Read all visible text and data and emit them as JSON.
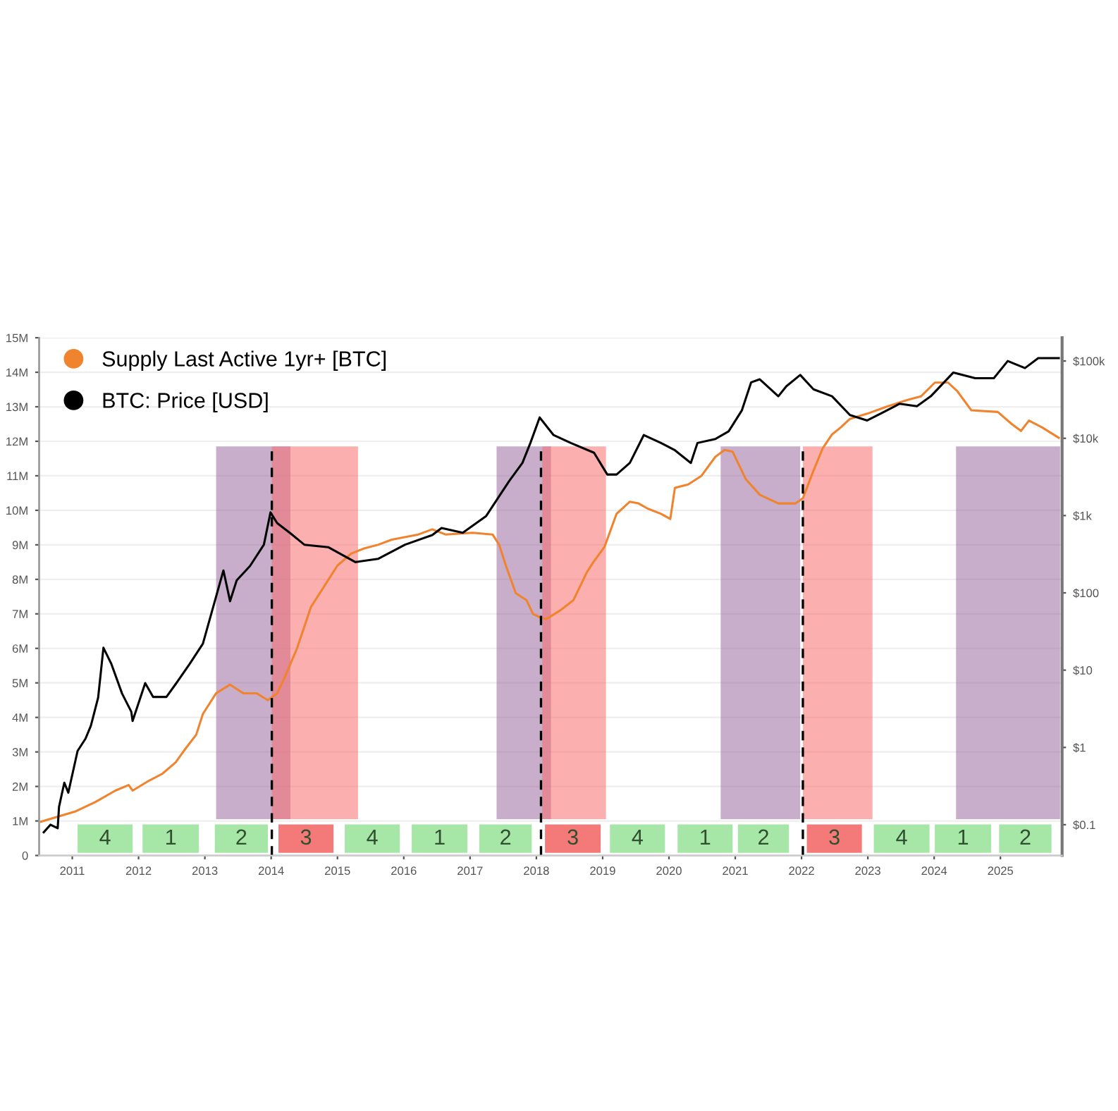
{
  "chart_data": {
    "type": "line",
    "series": [
      {
        "name": "Supply Last Active 1yr+ [BTC]",
        "color": "#f0832e",
        "x": [
          2010.53,
          2011.04,
          2011.35,
          2011.65,
          2011.85,
          2011.91,
          2012.16,
          2012.36,
          2012.56,
          2012.71,
          2012.87,
          2012.97,
          2013.17,
          2013.38,
          2013.58,
          2013.78,
          2013.95,
          2014.09,
          2014.19,
          2014.39,
          2014.6,
          2014.8,
          2015.0,
          2015.21,
          2015.41,
          2015.61,
          2015.82,
          2016.22,
          2016.43,
          2016.63,
          2017.04,
          2017.34,
          2017.44,
          2017.54,
          2017.69,
          2017.85,
          2017.95,
          2018.05,
          2018.15,
          2018.36,
          2018.56,
          2018.76,
          2018.86,
          2019.03,
          2019.21,
          2019.41,
          2019.54,
          2019.68,
          2019.88,
          2020.02,
          2020.09,
          2020.29,
          2020.49,
          2020.7,
          2020.84,
          2020.96,
          2021.16,
          2021.37,
          2021.65,
          2021.91,
          2022.02,
          2022.18,
          2022.32,
          2022.46,
          2022.59,
          2022.73,
          2022.99,
          2023.28,
          2023.6,
          2023.8,
          2024.01,
          2024.21,
          2024.35,
          2024.56,
          2024.96,
          2025.17,
          2025.31,
          2025.43,
          2025.63,
          2025.88
        ],
        "values": [
          980000,
          1270000,
          1550000,
          1880000,
          2040000,
          1880000,
          2170000,
          2370000,
          2700000,
          3100000,
          3500000,
          4100000,
          4700000,
          4950000,
          4700000,
          4700000,
          4500000,
          4700000,
          5100000,
          6000000,
          7200000,
          7800000,
          8400000,
          8750000,
          8900000,
          9000000,
          9150000,
          9300000,
          9450000,
          9300000,
          9350000,
          9300000,
          9000000,
          8400000,
          7600000,
          7400000,
          7000000,
          6900000,
          6850000,
          7100000,
          7400000,
          8200000,
          8500000,
          8950000,
          9900000,
          10250000,
          10200000,
          10050000,
          9900000,
          9750000,
          10650000,
          10750000,
          11000000,
          11550000,
          11750000,
          11700000,
          10900000,
          10450000,
          10200000,
          10200000,
          10350000,
          11150000,
          11800000,
          12200000,
          12400000,
          12650000,
          12800000,
          13000000,
          13200000,
          13300000,
          13700000,
          13700000,
          13450000,
          12900000,
          12850000,
          12500000,
          12300000,
          12600000,
          12400000,
          12100000
        ]
      },
      {
        "name": "BTC: Price [USD]",
        "color": "#000000",
        "axis": "y2",
        "x": [
          2010.57,
          2010.67,
          2010.78,
          2010.8,
          2010.88,
          2010.94,
          2011.08,
          2011.2,
          2011.28,
          2011.39,
          2011.47,
          2011.59,
          2011.75,
          2011.89,
          2011.91,
          2012.1,
          2012.22,
          2012.42,
          2012.57,
          2012.77,
          2012.97,
          2013.28,
          2013.38,
          2013.48,
          2013.68,
          2013.89,
          2013.99,
          2014.09,
          2014.29,
          2014.5,
          2014.86,
          2015.27,
          2015.61,
          2016.02,
          2016.43,
          2016.57,
          2016.89,
          2017.24,
          2017.59,
          2017.79,
          2017.91,
          2018.05,
          2018.26,
          2018.52,
          2018.87,
          2019.07,
          2019.21,
          2019.41,
          2019.62,
          2019.88,
          2020.09,
          2020.33,
          2020.43,
          2020.7,
          2020.9,
          2021.1,
          2021.24,
          2021.37,
          2021.65,
          2021.77,
          2021.98,
          2022.18,
          2022.46,
          2022.73,
          2022.99,
          2023.2,
          2023.48,
          2023.74,
          2023.95,
          2024.29,
          2024.62,
          2024.9,
          2025.11,
          2025.37,
          2025.57,
          2025.88
        ],
        "values": [
          0.08,
          0.1,
          0.09,
          0.17,
          0.35,
          0.26,
          0.9,
          1.3,
          1.9,
          4.4,
          19.5,
          12,
          5,
          2.9,
          2.2,
          6.8,
          4.5,
          4.5,
          6.8,
          12,
          22,
          195,
          78,
          145,
          222,
          420,
          1100,
          800,
          590,
          420,
          390,
          250,
          275,
          420,
          560,
          690,
          600,
          980,
          2800,
          4800,
          8700,
          18600,
          11000,
          8700,
          6500,
          3400,
          3400,
          4800,
          11000,
          8700,
          7000,
          4800,
          8700,
          9800,
          12300,
          23000,
          53000,
          58000,
          35000,
          47000,
          66000,
          43000,
          35000,
          20000,
          17000,
          21000,
          28000,
          26000,
          35000,
          71000,
          60000,
          60000,
          100000,
          81000,
          109000,
          109000
        ]
      }
    ],
    "xlim": [
      2010.5,
      2025.93
    ],
    "xticks": [
      2011,
      2012,
      2013,
      2014,
      2015,
      2016,
      2017,
      2018,
      2019,
      2020,
      2021,
      2022,
      2023,
      2024,
      2025
    ],
    "ylim": [
      0,
      15000000
    ],
    "yticks": [
      0,
      {
        "value": 1000000,
        "label": "1M"
      },
      {
        "value": 2000000,
        "label": "2M"
      },
      {
        "value": 3000000,
        "label": "3M"
      },
      {
        "value": 4000000,
        "label": "4M"
      },
      {
        "value": 5000000,
        "label": "5M"
      },
      {
        "value": 6000000,
        "label": "6M"
      },
      {
        "value": 7000000,
        "label": "7M"
      },
      {
        "value": 8000000,
        "label": "8M"
      },
      {
        "value": 9000000,
        "label": "9M"
      },
      {
        "value": 10000000,
        "label": "10M"
      },
      {
        "value": 11000000,
        "label": "11M"
      },
      {
        "value": 12000000,
        "label": "12M"
      },
      {
        "value": 13000000,
        "label": "13M"
      },
      {
        "value": 14000000,
        "label": "14M"
      },
      {
        "value": 15000000,
        "label": "15M"
      }
    ],
    "y2lim": [
      0.04,
      200000
    ],
    "y2ticks": [
      {
        "value": 0.1,
        "label": "$0.1"
      },
      {
        "value": 1,
        "label": "$1"
      },
      {
        "value": 10,
        "label": "$10"
      },
      {
        "value": 100,
        "label": "$100"
      },
      {
        "value": 1000,
        "label": "$1k"
      },
      {
        "value": 10000,
        "label": "$10k"
      },
      {
        "value": 100000,
        "label": "$100k"
      }
    ],
    "log": "y2",
    "grid": "y",
    "legend": "top left",
    "ref_lines": [
      {
        "axis": "x",
        "value": 2014.01,
        "color": "#000000",
        "line_style": "dashed"
      },
      {
        "axis": "x",
        "value": 2018.07,
        "color": "#000000",
        "line_style": "dashed"
      },
      {
        "axis": "x",
        "value": 2022.02,
        "color": "#000000",
        "line_style": "dashed"
      }
    ],
    "bands": [
      {
        "axis": "x",
        "from": 2013.17,
        "to": 2014.29,
        "color": "#9b6b9e"
      },
      {
        "axis": "x",
        "from": 2014.01,
        "to": 2015.31,
        "color": "#f76d6d"
      },
      {
        "axis": "x",
        "from": 2017.4,
        "to": 2018.22,
        "color": "#9b6b9e"
      },
      {
        "axis": "x",
        "from": 2018.09,
        "to": 2019.05,
        "color": "#f76d6d"
      },
      {
        "axis": "x",
        "from": 2020.78,
        "to": 2021.98,
        "color": "#9b6b9e"
      },
      {
        "axis": "x",
        "from": 2022.02,
        "to": 2023.07,
        "color": "#f76d6d"
      },
      {
        "axis": "x",
        "from": 2024.33,
        "to": 2025.9,
        "color": "#9b6b9e"
      },
      {
        "axis": "x",
        "from": 2011.08,
        "to": 2011.91,
        "label": "4",
        "color": "#a6e6a6"
      },
      {
        "axis": "x",
        "from": 2012.06,
        "to": 2012.91,
        "label": "1",
        "color": "#a6e6a6"
      },
      {
        "axis": "x",
        "from": 2013.15,
        "to": 2013.95,
        "label": "2",
        "color": "#a6e6a6"
      },
      {
        "axis": "x",
        "from": 2014.11,
        "to": 2014.94,
        "label": "3",
        "color": "#f47a7a"
      },
      {
        "axis": "x",
        "from": 2015.11,
        "to": 2015.94,
        "label": "4",
        "color": "#a6e6a6"
      },
      {
        "axis": "x",
        "from": 2016.12,
        "to": 2016.96,
        "label": "1",
        "color": "#a6e6a6"
      },
      {
        "axis": "x",
        "from": 2017.14,
        "to": 2017.93,
        "label": "2",
        "color": "#a6e6a6"
      },
      {
        "axis": "x",
        "from": 2018.13,
        "to": 2018.97,
        "label": "3",
        "color": "#f47a7a"
      },
      {
        "axis": "x",
        "from": 2019.11,
        "to": 2019.94,
        "label": "4",
        "color": "#a6e6a6"
      },
      {
        "axis": "x",
        "from": 2020.13,
        "to": 2020.96,
        "label": "1",
        "color": "#a6e6a6"
      },
      {
        "axis": "x",
        "from": 2021.04,
        "to": 2021.81,
        "label": "2",
        "color": "#a6e6a6"
      },
      {
        "axis": "x",
        "from": 2022.08,
        "to": 2022.91,
        "label": "3",
        "color": "#f47a7a"
      },
      {
        "axis": "x",
        "from": 2023.09,
        "to": 2023.93,
        "label": "4",
        "color": "#a6e6a6"
      },
      {
        "axis": "x",
        "from": 2024.01,
        "to": 2024.86,
        "label": "1",
        "color": "#a6e6a6"
      },
      {
        "axis": "x",
        "from": 2024.98,
        "to": 2025.77,
        "label": "2",
        "color": "#a6e6a6"
      }
    ]
  }
}
